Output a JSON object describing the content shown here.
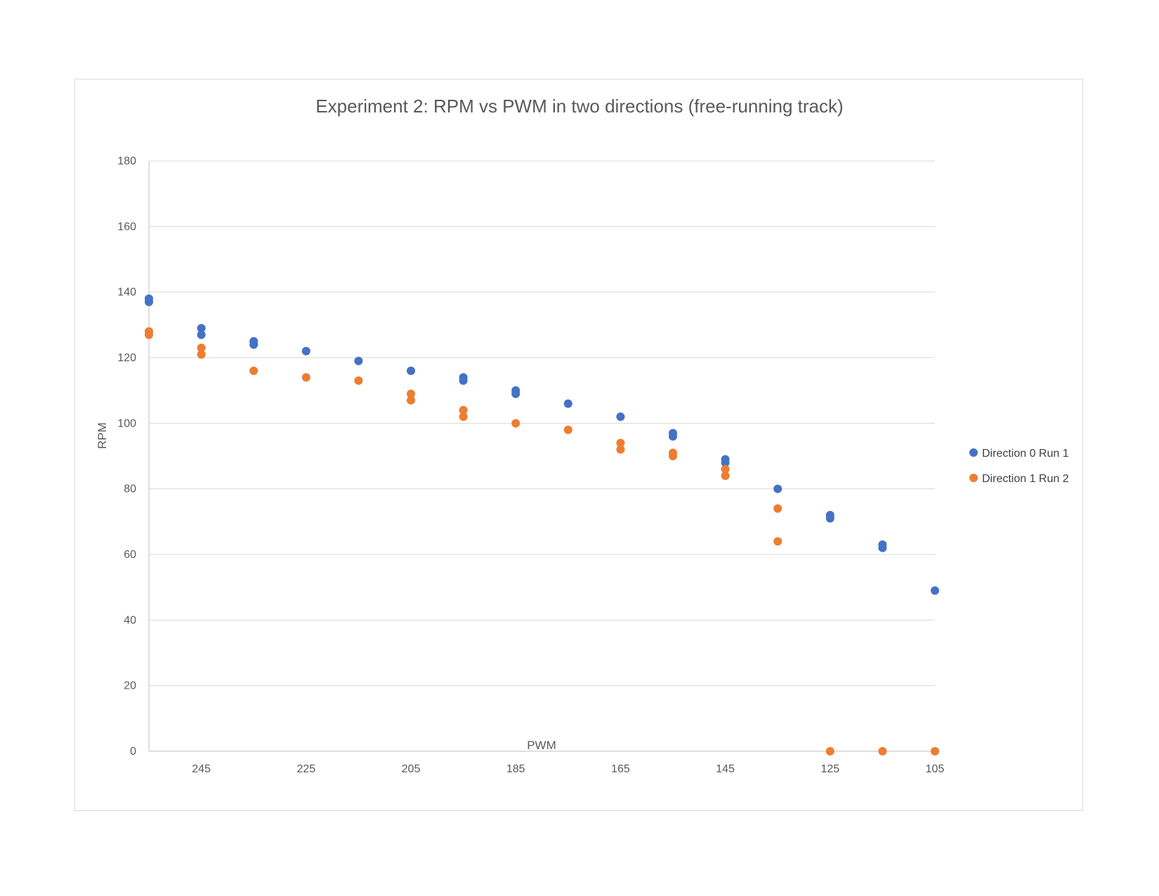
{
  "chart_data": {
    "type": "scatter",
    "title": "Experiment 2: RPM vs PWM in two directions (free-running track)",
    "xlabel": "PWM",
    "ylabel": "RPM",
    "xlim": [
      255,
      105
    ],
    "x_reversed": true,
    "ylim": [
      0,
      180
    ],
    "x_ticks": [
      245,
      225,
      205,
      185,
      165,
      145,
      125,
      105
    ],
    "y_ticks": [
      0,
      20,
      40,
      60,
      80,
      100,
      120,
      140,
      160,
      180
    ],
    "grid": "horizontal",
    "legend_position": "right",
    "series": [
      {
        "name": "Direction 0 Run 1",
        "color": "#4472C4",
        "points": [
          [
            255,
            138
          ],
          [
            255,
            137
          ],
          [
            245,
            129
          ],
          [
            245,
            127
          ],
          [
            235,
            125
          ],
          [
            235,
            124
          ],
          [
            225,
            122
          ],
          [
            215,
            119
          ],
          [
            205,
            116
          ],
          [
            195,
            114
          ],
          [
            195,
            113
          ],
          [
            185,
            110
          ],
          [
            185,
            109
          ],
          [
            175,
            106
          ],
          [
            165,
            102
          ],
          [
            155,
            97
          ],
          [
            155,
            96
          ],
          [
            145,
            89
          ],
          [
            145,
            88
          ],
          [
            135,
            80
          ],
          [
            125,
            72
          ],
          [
            125,
            71
          ],
          [
            115,
            63
          ],
          [
            115,
            62
          ],
          [
            105,
            49
          ]
        ]
      },
      {
        "name": "Direction 1 Run 2",
        "color": "#ED7D31",
        "points": [
          [
            255,
            128
          ],
          [
            255,
            127
          ],
          [
            245,
            123
          ],
          [
            245,
            121
          ],
          [
            235,
            116
          ],
          [
            225,
            114
          ],
          [
            215,
            113
          ],
          [
            205,
            109
          ],
          [
            205,
            107
          ],
          [
            195,
            104
          ],
          [
            195,
            102
          ],
          [
            185,
            100
          ],
          [
            175,
            98
          ],
          [
            165,
            94
          ],
          [
            165,
            92
          ],
          [
            155,
            91
          ],
          [
            155,
            90
          ],
          [
            145,
            86
          ],
          [
            145,
            84
          ],
          [
            135,
            74
          ],
          [
            135,
            64
          ],
          [
            125,
            0
          ],
          [
            115,
            0
          ],
          [
            105,
            0
          ]
        ]
      }
    ]
  }
}
